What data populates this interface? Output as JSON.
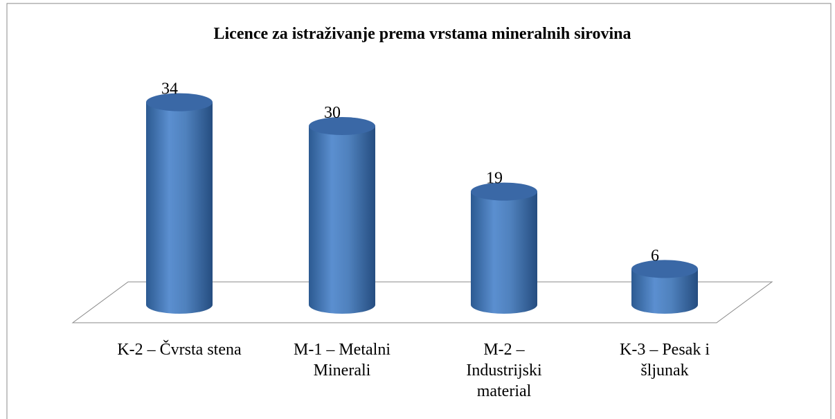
{
  "chart_data": {
    "type": "bar",
    "title": "Licence za istraživanje prema vrstama mineralnih sirovina",
    "categories": [
      "K-2 – Čvrsta stena",
      "M-1 – Metalni Minerali",
      "M-2 – Industrijski material",
      "K-3 – Pesak i šljunak"
    ],
    "values": [
      34,
      30,
      19,
      6
    ],
    "color": "#4f81bd"
  }
}
